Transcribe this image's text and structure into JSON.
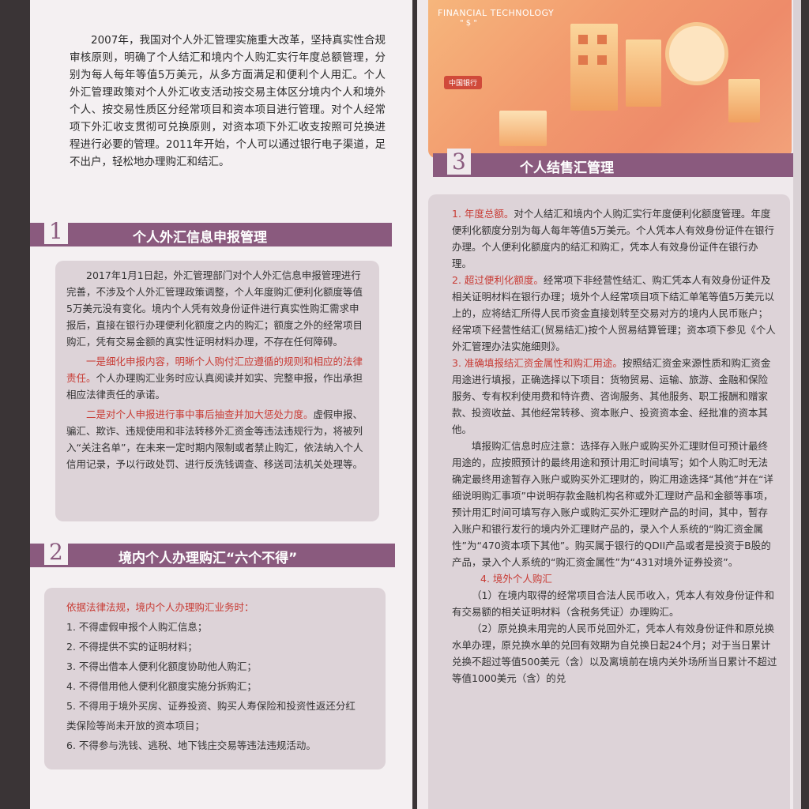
{
  "intro": "2007年，我国对个人外汇管理实施重大改革，坚持真实性合规审核原则，明确了个人结汇和境内个人购汇实行年度总额管理，分别为每人每年等值5万美元，从多方面满足和便利个人用汇。个人外汇管理政策对个人外汇收支活动按交易主体区分境内个人和境外个人、按交易性质区分经常项目和资本项目进行管理。对个人经常项下外汇收支贯彻可兑换原则，对资本项下外汇收支按照可兑换进程进行必要的管理。2011年开始，个人可以通过银行电子渠道，足不出户，轻松地办理购汇和结汇。",
  "sec1": {
    "num": "1",
    "title": "个人外汇信息申报管理",
    "p1": "2017年1月1日起，外汇管理部门对个人外汇信息申报管理进行完善，不涉及个人外汇管理政策调整，个人年度购汇便利化额度等值5万美元没有变化。境内个人凭有效身份证件进行真实性购汇需求申报后，直接在银行办理便利化额度之内的购汇；额度之外的经常项目购汇，凭有交易金额的真实性证明材料办理，不存在任何障碍。",
    "p2_red": "一是细化申报内容，明晰个人购付汇应遵循的规则和相应的法律责任。",
    "p2_rest": "个人办理购汇业务时应认真阅读并如实、完整申报，作出承担相应法律责任的承诺。",
    "p3_red": "二是对个人申报进行事中事后抽查并加大惩处力度。",
    "p3_rest": "虚假申报、骗汇、欺诈、违规使用和非法转移外汇资金等违法违规行为，将被列入“关注名单”，在未来一定时期内限制或者禁止购汇，依法纳入个人信用记录，予以行政处罚、进行反洗钱调查、移送司法机关处理等。"
  },
  "sec2": {
    "num": "2",
    "title": "境内个人办理购汇“六个不得”",
    "lead": "依据法律法规，境内个人办理购汇业务时：",
    "items": [
      "1. 不得虚假申报个人购汇信息；",
      "2. 不得提供不实的证明材料；",
      "3. 不得出借本人便利化额度协助他人购汇；",
      "4. 不得借用他人便利化额度实施分拆购汇；",
      "5. 不得用于境外买房、证券投资、购买人寿保险和投资性返还分红类保险等尚未开放的资本项目；",
      "6. 不得参与洗钱、逃税、地下钱庄交易等违法违规活动。"
    ]
  },
  "image": {
    "caption1": "FINANCIAL TECHNOLOGY",
    "caption2": "\" $ \"",
    "badge": "中国银行"
  },
  "sec3": {
    "num": "3",
    "title": "个人结售汇管理",
    "r1_red": "1. 年度总额。",
    "r1": "对个人结汇和境内个人购汇实行年度便利化额度管理。年度便利化额度分别为每人每年等值5万美元。个人凭本人有效身份证件在银行办理。个人便利化额度内的结汇和购汇，凭本人有效身份证件在银行办理。",
    "r2_red": "2. 超过便利化额度。",
    "r2": "经常项下非经营性结汇、购汇凭本人有效身份证件及相关证明材料在银行办理；境外个人经常项目项下结汇单笔等值5万美元以上的，应将结汇所得人民币资金直接划转至交易对方的境内人民币账户；经常项下经营性结汇(贸易结汇)按个人贸易结算管理；资本项下参见《个人外汇管理办法实施细则》。",
    "r3_red": "3. 准确填报结汇资金属性和购汇用途。",
    "r3": "按照结汇资金来源性质和购汇资金用途进行填报，正确选择以下项目：货物贸易、运输、旅游、金融和保险服务、专有权利使用费和特许费、咨询服务、其他服务、职工报酬和赠家款、投资收益、其他经常转移、资本账户、投资资本金、经批准的资本其他。",
    "r4": "填报购汇信息时应注意：选择存入账户或购买外汇理财但可预计最终用途的，应按照预计的最终用途和预计用汇时间填写；如个人购汇时无法确定最终用途暂存入账户或购买外汇理财的，购汇用途选择“其他”并在“详细说明购汇事项”中说明存款金融机构名称或外汇理财产品和金额等事项，预计用汇时间可填写存入账户或购汇买外汇理财产品的时间，其中，暂存入账户和银行发行的境内外汇理财产品的，录入个人系统的“购汇资金属性”为“470资本项下其他”。购买属于银行的QDII产品或者是投资于B股的产品，录入个人系统的“购汇资金属性”为“431对境外证券投资”。",
    "r5_red": "4. 境外个人购汇",
    "r6": "（1）在境内取得的经常项目合法人民币收入，凭本人有效身份证件和有交易额的相关证明材料（含税务凭证）办理购汇。",
    "r7": "（2）原兑换未用完的人民币兑回外汇，凭本人有效身份证件和原兑换水单办理，原兑换水单的兑回有效期为自兑换日起24个月；对于当日累计兑换不超过等值500美元（含）以及离境前在境内关外场所当日累计不超过等值1000美元（含）的兑"
  },
  "colors": {
    "accent": "#8a5a7e",
    "red": "#c83b34",
    "panel": "#ddd3d8"
  }
}
